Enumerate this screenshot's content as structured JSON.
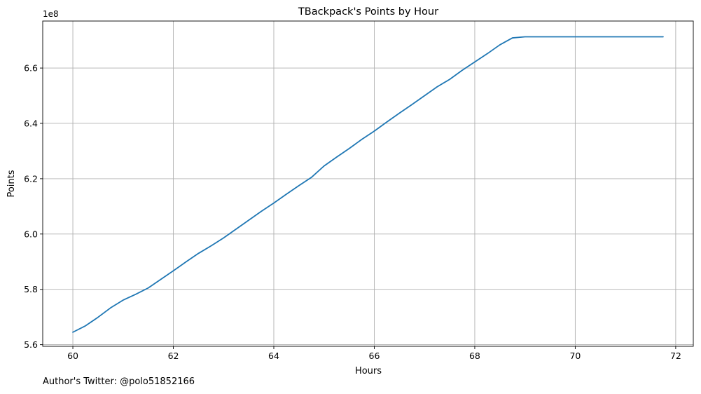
{
  "chart_data": {
    "type": "line",
    "title": "TBackpack's Points by Hour",
    "xlabel": "Hours",
    "ylabel": "Points",
    "y_offset_label": "1e8",
    "xlim": [
      59.4,
      72.35
    ],
    "ylim": [
      5.594,
      6.77
    ],
    "grid": true,
    "x_ticks": [
      60,
      62,
      64,
      66,
      68,
      70,
      72
    ],
    "x_tick_labels": [
      "60",
      "62",
      "64",
      "66",
      "68",
      "70",
      "72"
    ],
    "y_ticks": [
      5.6,
      5.8,
      6.0,
      6.2,
      6.4,
      6.6
    ],
    "y_tick_labels": [
      "5.6",
      "5.8",
      "6.0",
      "6.2",
      "6.4",
      "6.6"
    ],
    "series": [
      {
        "name": "Points",
        "color": "#1f77b4",
        "x": [
          60.0,
          60.25,
          60.5,
          60.75,
          61.0,
          61.25,
          61.5,
          61.75,
          62.0,
          62.25,
          62.5,
          62.75,
          63.0,
          63.25,
          63.5,
          63.75,
          64.0,
          64.25,
          64.5,
          64.75,
          65.0,
          65.25,
          65.5,
          65.75,
          66.0,
          66.25,
          66.5,
          66.75,
          67.0,
          67.25,
          67.5,
          67.75,
          68.0,
          68.25,
          68.5,
          68.75,
          69.0,
          69.25,
          69.5,
          69.75,
          70.0,
          70.25,
          70.5,
          70.75,
          71.0,
          71.25,
          71.5,
          71.75
        ],
        "y": [
          5.645,
          5.668,
          5.699,
          5.733,
          5.761,
          5.782,
          5.805,
          5.836,
          5.867,
          5.899,
          5.93,
          5.957,
          5.986,
          6.018,
          6.05,
          6.082,
          6.112,
          6.144,
          6.175,
          6.205,
          6.246,
          6.278,
          6.309,
          6.342,
          6.372,
          6.405,
          6.437,
          6.468,
          6.5,
          6.532,
          6.559,
          6.592,
          6.622,
          6.652,
          6.684,
          6.709,
          6.713,
          6.713,
          6.713,
          6.713,
          6.713,
          6.713,
          6.713,
          6.713,
          6.713,
          6.713,
          6.713,
          6.713
        ]
      }
    ]
  },
  "footer": {
    "author_note": "Author's Twitter: @polo51852166"
  }
}
